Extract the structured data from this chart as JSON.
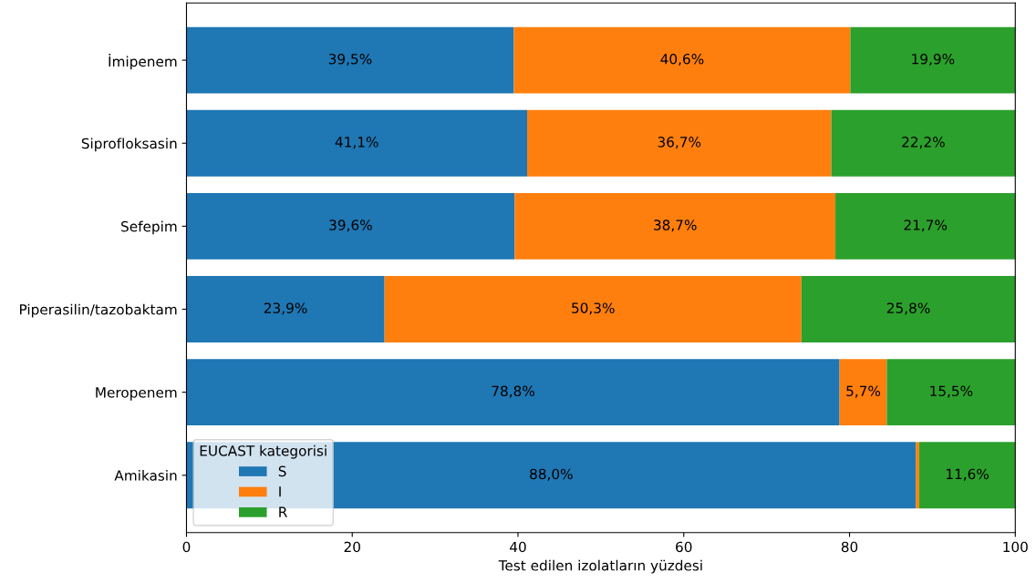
{
  "chart_data": {
    "type": "bar",
    "orientation": "horizontal",
    "stacked": true,
    "categories": [
      "İmipenem",
      "Siprofloksasin",
      "Sefepim",
      "Piperasilin/tazobaktam",
      "Meropenem",
      "Amikasin"
    ],
    "series": [
      {
        "name": "S",
        "color": "#1f77b4",
        "values": [
          39.5,
          41.1,
          39.6,
          23.9,
          78.8,
          88.0
        ],
        "value_labels": [
          "39,5%",
          "41,1%",
          "39,6%",
          "23,9%",
          "78,8%",
          "88,0%"
        ]
      },
      {
        "name": "I",
        "color": "#ff7f0e",
        "values": [
          40.6,
          36.7,
          38.7,
          50.3,
          5.7,
          0.4
        ],
        "value_labels": [
          "40,6%",
          "36,7%",
          "38,7%",
          "50,3%",
          "5,7%",
          null
        ]
      },
      {
        "name": "R",
        "color": "#2ca02c",
        "values": [
          19.9,
          22.2,
          21.7,
          25.8,
          15.5,
          11.6
        ],
        "value_labels": [
          "19,9%",
          "22,2%",
          "21,7%",
          "25,8%",
          "15,5%",
          "11,6%"
        ]
      }
    ],
    "xlabel": "Test edilen izolatların yüzdesi",
    "legend_title": "EUCAST kategorisi",
    "legend": "lower left",
    "xlim": [
      0,
      100
    ],
    "xticks": [
      0,
      20,
      40,
      60,
      80,
      100
    ],
    "grid": false
  }
}
